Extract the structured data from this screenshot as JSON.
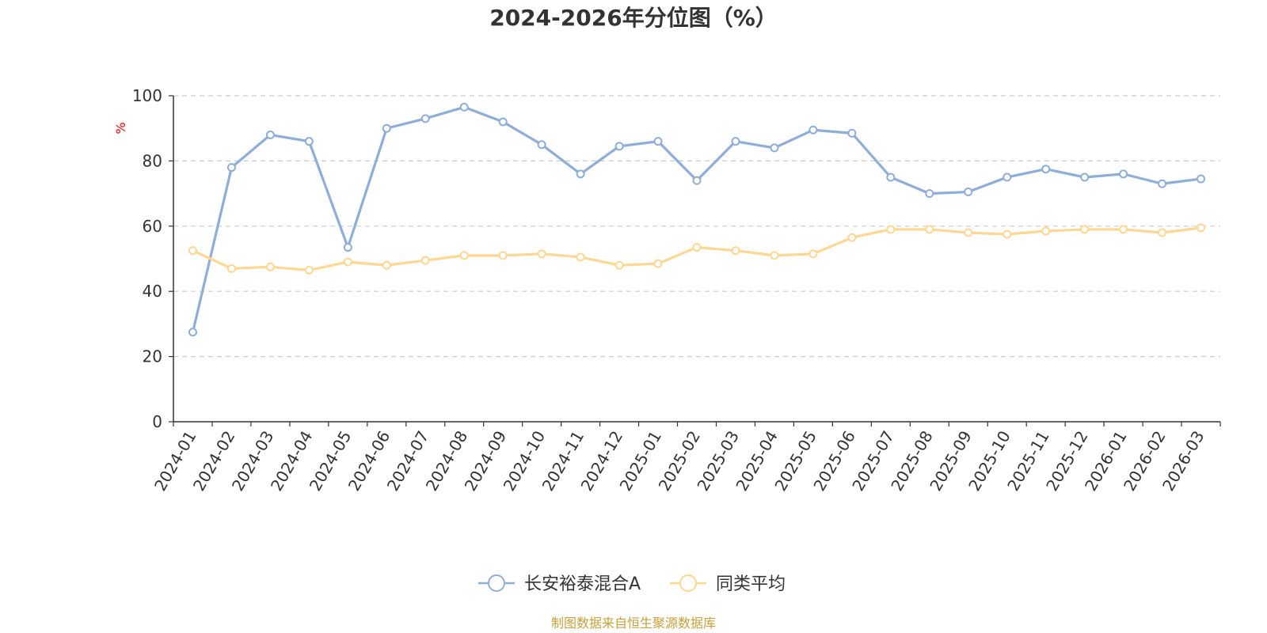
{
  "chart_data": {
    "type": "line",
    "title": "2024-2026年分位图（%）",
    "y_unit": "%",
    "ylim": [
      0,
      100
    ],
    "yticks": [
      0,
      20,
      40,
      60,
      80,
      100
    ],
    "grid": "horizontal dashed",
    "legend_position": "bottom-center",
    "categories": [
      "2024-01",
      "2024-02",
      "2024-03",
      "2024-04",
      "2024-05",
      "2024-06",
      "2024-07",
      "2024-08",
      "2024-09",
      "2024-10",
      "2024-11",
      "2024-12",
      "2025-01",
      "2025-02",
      "2025-03",
      "2025-04",
      "2025-05",
      "2025-06",
      "2025-07",
      "2025-08",
      "2025-09",
      "2025-10",
      "2025-11",
      "2025-12",
      "2026-01",
      "2026-02",
      "2026-03"
    ],
    "series": [
      {
        "name": "长安裕泰混合A",
        "color": "#8fadd9",
        "values": [
          27.5,
          78,
          88,
          86,
          53.5,
          90,
          93,
          96.5,
          92,
          85,
          76,
          84.5,
          86,
          74,
          86,
          84,
          89.5,
          88.5,
          75,
          70,
          70.5,
          75,
          77.5,
          75,
          76,
          73,
          74.5
        ]
      },
      {
        "name": "同类平均",
        "color": "#fdd793",
        "values": [
          52.5,
          47,
          47.5,
          46.5,
          49,
          48,
          49.5,
          51,
          51,
          51.5,
          50.5,
          48,
          48.5,
          53.5,
          52.5,
          51,
          51.5,
          56.5,
          59,
          59,
          58,
          57.5,
          58.5,
          59,
          59,
          58,
          59.5
        ]
      }
    ]
  },
  "footer": {
    "source": "制图数据来自恒生聚源数据库"
  },
  "colors": {
    "axis": "#333333",
    "grid": "#cccccc",
    "source": "#c8a03c",
    "unit": "#ff0000"
  }
}
